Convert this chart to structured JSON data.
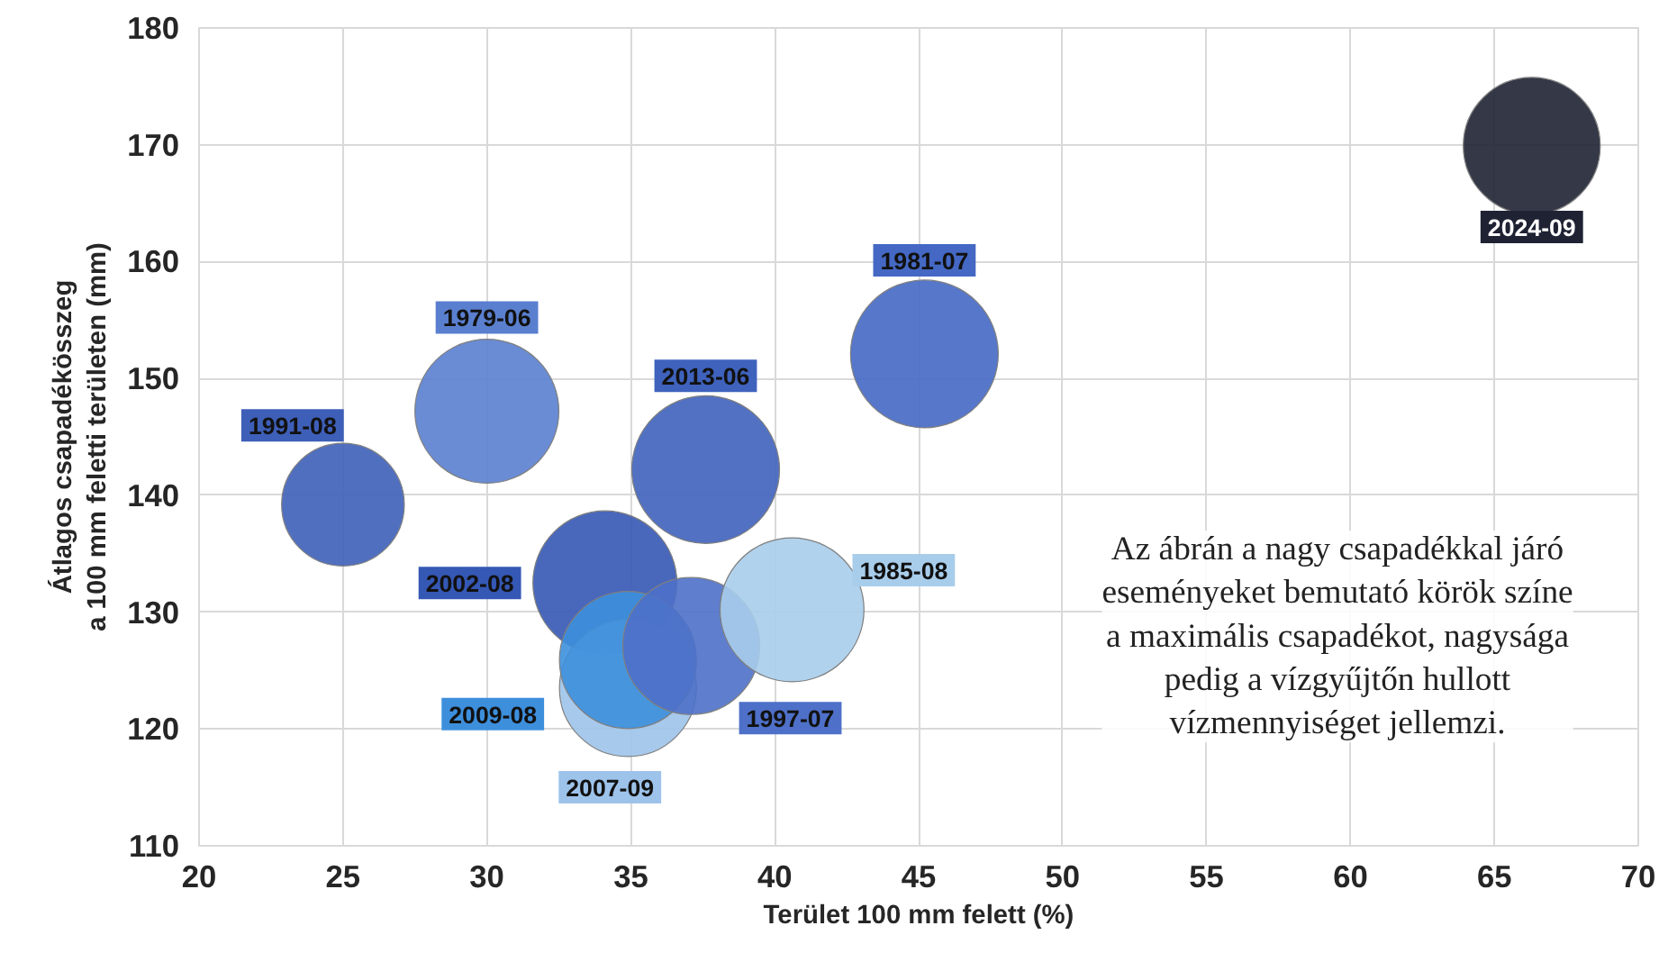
{
  "chart_data": {
    "type": "bubble",
    "xlabel": "Terület 100 mm felett (%)",
    "ylabel": "Átlagos csapadékösszeg\na 100 mm feletti területen (mm)",
    "xlim": [
      20,
      70
    ],
    "xticks": [
      20,
      25,
      30,
      35,
      40,
      45,
      50,
      55,
      60,
      65,
      70
    ],
    "ylim": [
      110,
      180
    ],
    "yticks": [
      110,
      120,
      130,
      140,
      150,
      160,
      170,
      180
    ],
    "grid": true,
    "annotations": [
      "Az ábrán a nagy csapadékkal járó\neseményeket bemutató körök színe\na maximális csapadékot, nagysága\npedig a vízgyűjtőn hullott\nvízmennyiséget jellemzi."
    ],
    "series": [
      {
        "name": "1991-08",
        "color": "#3e5fb8",
        "x": [
          25.0
        ],
        "values": [
          139.2
        ],
        "sizes": [
          0.69
        ]
      },
      {
        "name": "1979-06",
        "color": "#5a7fcf",
        "x": [
          30.0
        ],
        "values": [
          147.2
        ],
        "sizes": [
          0.95
        ]
      },
      {
        "name": "2013-06",
        "color": "#3f62bd",
        "x": [
          37.6
        ],
        "values": [
          142.2
        ],
        "sizes": [
          1
        ]
      },
      {
        "name": "2002-08",
        "color": "#3558b5",
        "x": [
          34.1
        ],
        "values": [
          132.5
        ],
        "sizes": [
          0.95
        ]
      },
      {
        "name": "2007-09",
        "color": "#9dc3ea",
        "x": [
          34.9
        ],
        "values": [
          123.5
        ],
        "sizes": [
          0.86
        ]
      },
      {
        "name": "2009-08",
        "color": "#3d8fdc",
        "x": [
          34.9
        ],
        "values": [
          125.9
        ],
        "sizes": [
          0.86
        ]
      },
      {
        "name": "1997-07",
        "color": "#4e70c8",
        "x": [
          37.1
        ],
        "values": [
          127.1
        ],
        "sizes": [
          0.86
        ]
      },
      {
        "name": "1985-08",
        "color": "#a8cdeb",
        "x": [
          40.6
        ],
        "values": [
          130.2
        ],
        "sizes": [
          0.95
        ]
      },
      {
        "name": "1981-07",
        "color": "#4468c4",
        "x": [
          45.2
        ],
        "values": [
          152.1
        ],
        "sizes": [
          1
        ]
      },
      {
        "name": "2024-09",
        "color": "#1e2233",
        "x": [
          66.3
        ],
        "values": [
          169.9
        ],
        "sizes": [
          0.86
        ]
      }
    ]
  }
}
